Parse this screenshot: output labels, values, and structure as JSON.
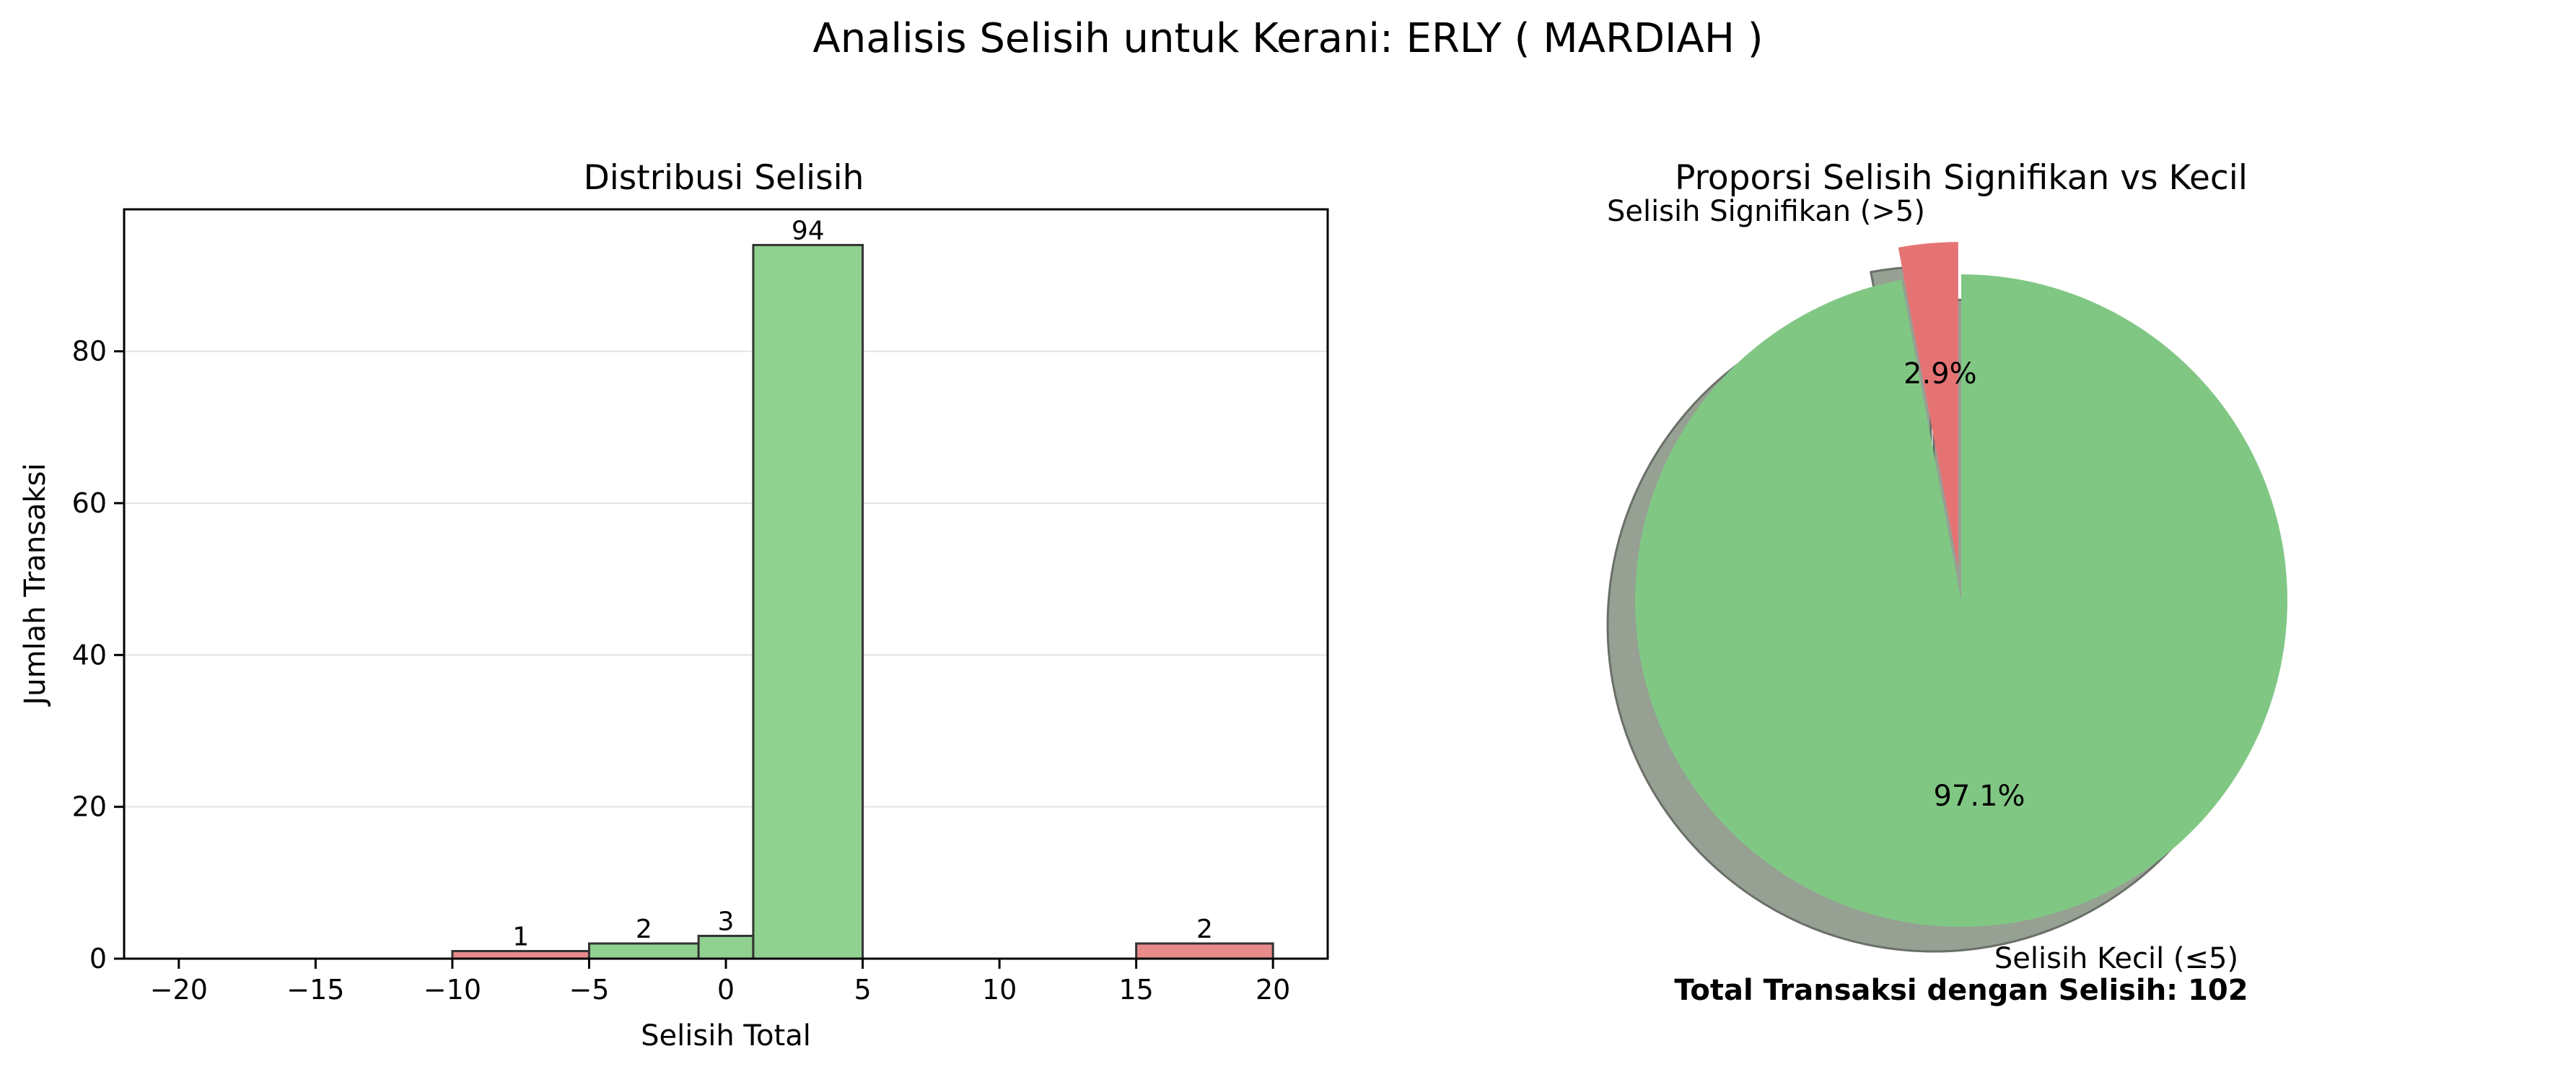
{
  "figure": {
    "suptitle": "Analisis Selisih untuk Kerani: ERLY ( MARDIAH )"
  },
  "chart_data": [
    {
      "type": "bar",
      "title": "Distribusi Selisih",
      "xlabel": "Selisih Total",
      "ylabel": "Jumlah Transaksi",
      "xlim": [
        -22,
        22
      ],
      "ylim": [
        0,
        98.7
      ],
      "xticks": [
        -20,
        -15,
        -10,
        -5,
        0,
        5,
        10,
        15,
        20
      ],
      "xtick_labels": [
        "−20",
        "−15",
        "−10",
        "−5",
        "0",
        "5",
        "10",
        "15",
        "20"
      ],
      "yticks": [
        0,
        20,
        40,
        60,
        80
      ],
      "grid": "y",
      "bins": [
        {
          "x0": -10,
          "x1": -5,
          "value": 1,
          "label": "1",
          "color": "#e88a8a"
        },
        {
          "x0": -5,
          "x1": -1,
          "value": 2,
          "label": "2",
          "color": "#90d090"
        },
        {
          "x0": -1,
          "x1": 1,
          "value": 3,
          "label": "3",
          "color": "#90d090"
        },
        {
          "x0": 1,
          "x1": 5,
          "value": 94,
          "label": "94",
          "color": "#90d090"
        },
        {
          "x0": 15,
          "x1": 20,
          "value": 2,
          "label": "2",
          "color": "#e88a8a"
        }
      ]
    },
    {
      "type": "pie",
      "title": "Proporsi Selisih Signifikan vs Kecil",
      "slices": [
        {
          "label": "Selisih Signifikan (>5)",
          "value": 3,
          "pct_label": "2.9%",
          "color": "#e57373",
          "explode": true
        },
        {
          "label": "Selisih Kecil (≤5)",
          "value": 99,
          "pct_label": "97.1%",
          "color": "#81c784",
          "explode": false
        }
      ],
      "shadow": true,
      "footer": "Total Transaksi dengan Selisih: 102"
    }
  ]
}
